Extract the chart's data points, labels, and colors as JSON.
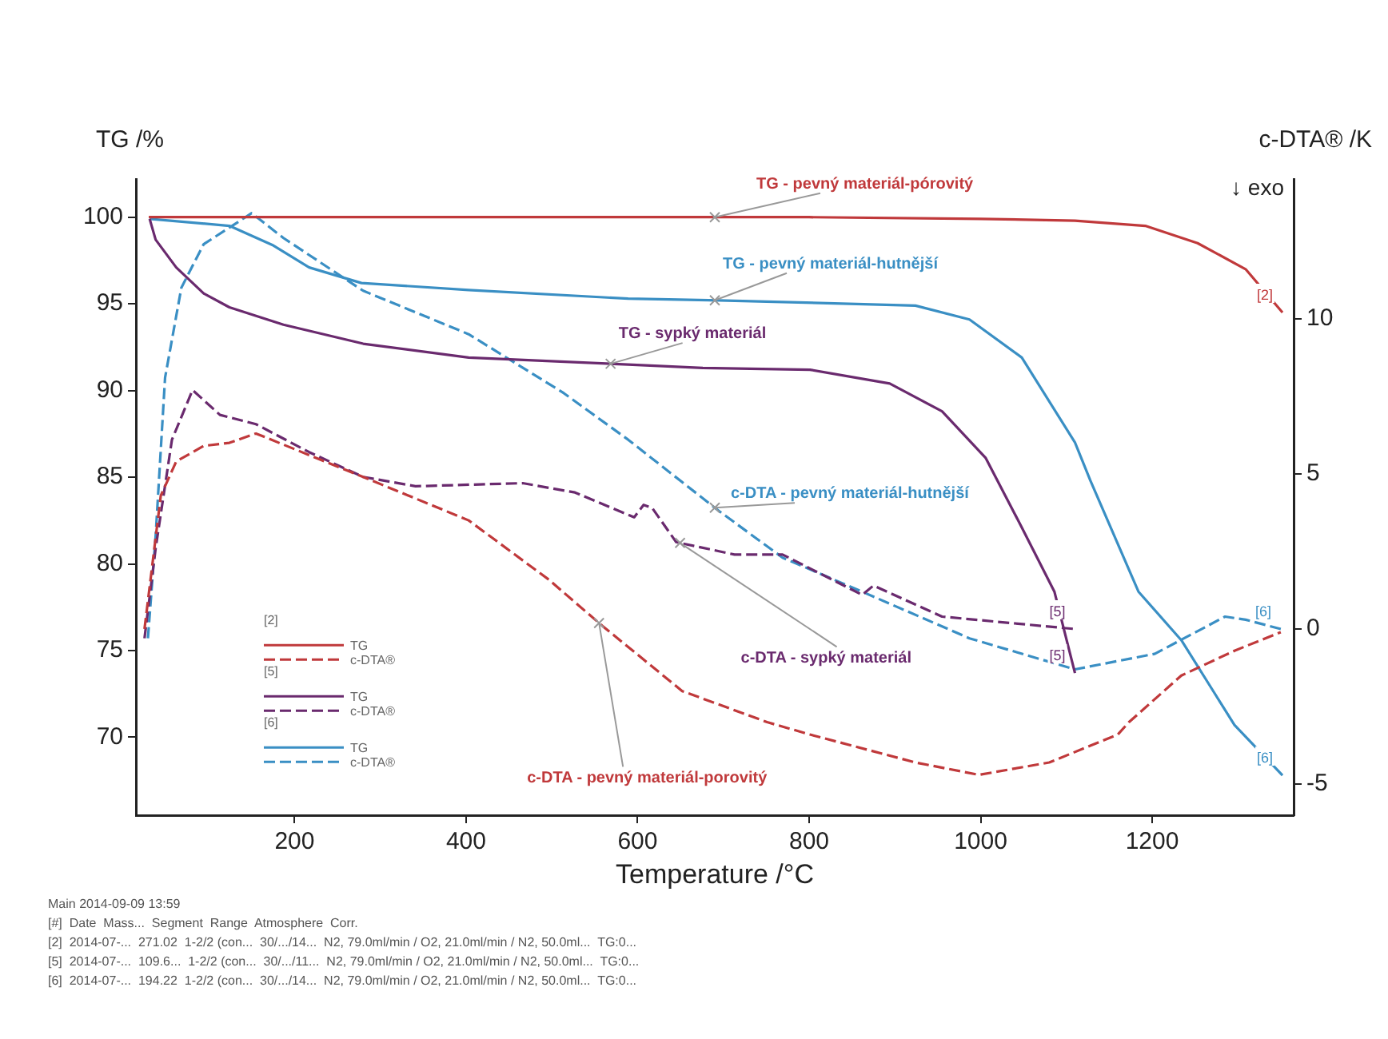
{
  "chart_data": {
    "type": "line",
    "xlabel": "Temperature /°C",
    "ylabel": "TG /%",
    "y2label": "c-DTA® /K",
    "xlim": [
      15,
      1365
    ],
    "xticks": [
      200,
      400,
      600,
      800,
      1000,
      1200
    ],
    "ylim": [
      65.5,
      102.2
    ],
    "yticks": [
      70,
      75,
      80,
      85,
      90,
      95,
      100
    ],
    "y2lim": [
      -6,
      14.5
    ],
    "y2ticks": [
      -5,
      0,
      5,
      10
    ],
    "grid": false,
    "legend": "left",
    "marker": "none",
    "series": [
      {
        "name": "TG - pevný materiál-pórovitý",
        "color": "#c0393b",
        "line_style": "solid",
        "x": [
          30,
          200,
          400,
          600,
          800,
          1000,
          1110,
          1192,
          1253,
          1309,
          1352
        ],
        "values": [
          100,
          100,
          100,
          100,
          100,
          99.9,
          99.8,
          99.5,
          98.5,
          97.0,
          94.5
        ]
      },
      {
        "name": "c-DTA - pevný materiál-porovitý",
        "color": "#c0393b",
        "line_style": "dashed",
        "axis": "y2",
        "x": [
          25,
          44,
          62,
          94,
          124,
          155,
          280,
          403,
          496,
          559,
          652,
          751,
          801,
          924,
          998,
          1080,
          1160,
          1173,
          1234,
          1296,
          1350
        ],
        "values": [
          0,
          4.3,
          5.4,
          5.9,
          6.0,
          6.3,
          4.9,
          3.5,
          1.6,
          0.1,
          -2.0,
          -3.0,
          -3.4,
          -4.3,
          -4.7,
          -4.3,
          -3.4,
          -3.0,
          -1.5,
          -0.7,
          -0.1
        ]
      },
      {
        "name": "TG - sypký materiál",
        "color": "#6a2a6e",
        "line_style": "solid",
        "x": [
          31,
          38,
          62,
          94,
          124,
          187,
          280,
          403,
          589,
          676,
          801,
          894,
          955,
          1006,
          1048,
          1086,
          1110
        ],
        "values": [
          99.9,
          98.7,
          97.1,
          95.6,
          94.8,
          93.8,
          92.7,
          91.9,
          91.5,
          91.3,
          91.2,
          90.4,
          88.8,
          86.1,
          82.1,
          78.4,
          73.7
        ]
      },
      {
        "name": "c-DTA - sypký materiál",
        "color": "#6a2a6e",
        "line_style": "dashed",
        "axis": "y2",
        "x": [
          25,
          38,
          57,
          81,
          113,
          155,
          217,
          280,
          341,
          466,
          527,
          596,
          607,
          617,
          645,
          713,
          769,
          862,
          875,
          955,
          1110
        ],
        "values": [
          -0.3,
          2.6,
          6.1,
          7.7,
          6.9,
          6.6,
          5.7,
          4.9,
          4.6,
          4.7,
          4.4,
          3.6,
          4.0,
          3.9,
          2.8,
          2.4,
          2.4,
          1.1,
          1.4,
          0.4,
          0
        ]
      },
      {
        "name": "TG - pevný materiál-hutnější",
        "color": "#3a8fc4",
        "line_style": "solid",
        "x": [
          31,
          124,
          174,
          217,
          278,
          403,
          589,
          695,
          924,
          987,
          1048,
          1110,
          1128,
          1184,
          1234,
          1272,
          1296,
          1352
        ],
        "values": [
          99.9,
          99.5,
          98.4,
          97.1,
          96.2,
          95.8,
          95.3,
          95.2,
          94.9,
          94.1,
          91.9,
          87.0,
          84.8,
          78.4,
          75.6,
          72.6,
          70.7,
          67.8
        ]
      },
      {
        "name": "c-DTA - pevný materiál-hutnější",
        "color": "#3a8fc4",
        "line_style": "dashed",
        "axis": "y2",
        "x": [
          29,
          38,
          49,
          68,
          94,
          150,
          187,
          280,
          403,
          514,
          589,
          695,
          769,
          862,
          987,
          1110,
          1203,
          1285,
          1309,
          1350
        ],
        "values": [
          -0.3,
          3.0,
          8.1,
          11.0,
          12.4,
          13.4,
          12.6,
          10.9,
          9.5,
          7.6,
          6.1,
          3.8,
          2.3,
          1.2,
          -0.3,
          -1.3,
          -0.8,
          0.4,
          0.3,
          0
        ]
      }
    ],
    "annotations": [
      "[2]",
      "[5]",
      "[6]",
      "[5]",
      "[6]",
      "[2]",
      "TG",
      "c-DTA®",
      "[5]",
      "TG",
      "c-DTA®",
      "[6]",
      "TG",
      "c-DTA®",
      "↓ exo",
      "Main 2014-09-09 13:59",
      "[#]  Date  Mass...  Segment  Range  Atmosphere  Corr.",
      "[2]  2014-07-...  271.02  1-2/2 (con...  30/.../14...  N2, 79.0ml/min / O2, 21.0ml/min / N2, 50.0ml...  TG:0...",
      "[5]  2014-07-...  109.6...  1-2/2 (con...  30/.../11...  N2, 79.0ml/min / O2, 21.0ml/min / N2, 50.0ml...  TG:0...",
      "[6]  2014-07-...  194.22  1-2/2 (con...  30/.../14...  N2, 79.0ml/min / O2, 21.0ml/min / N2, 50.0ml...  TG:0..."
    ]
  }
}
